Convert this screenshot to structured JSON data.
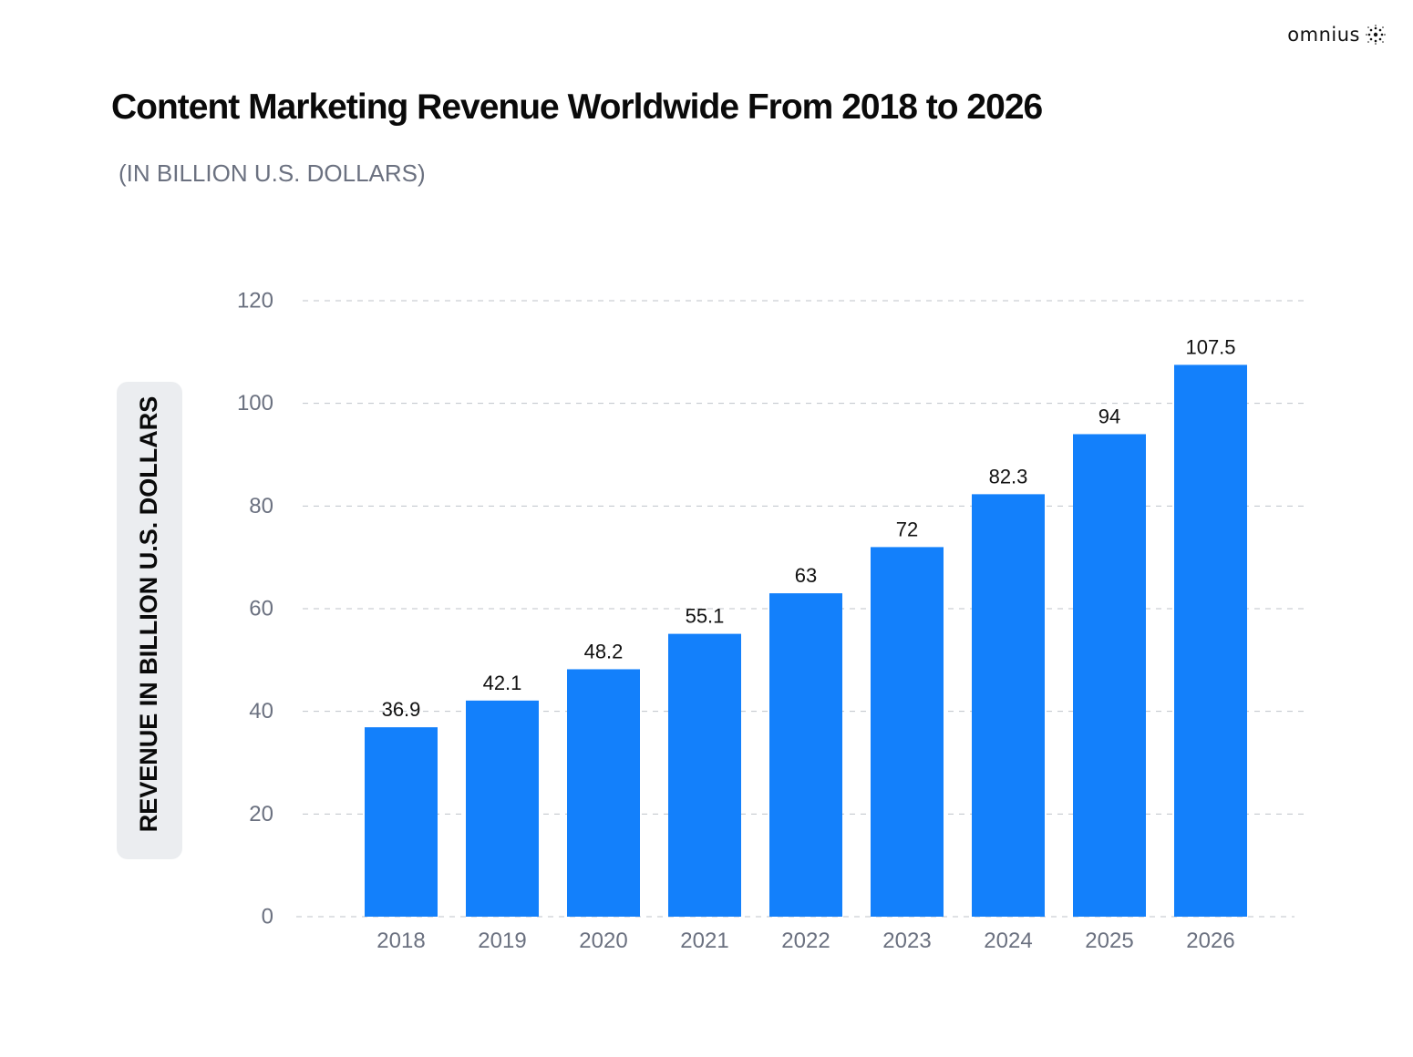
{
  "brand": {
    "name": "omnius",
    "icon": "omnius-logo-icon"
  },
  "header": {
    "title": "Content Marketing Revenue Worldwide From 2018 to 2026",
    "subtitle": "(IN BILLION U.S. DOLLARS)"
  },
  "colors": {
    "bar": "#1380FB",
    "grid": "#bfc3ca",
    "axis_text": "#6b7180",
    "label_text": "#111111",
    "ylabel_bg": "#ebedf0"
  },
  "chart_data": {
    "type": "bar",
    "title": "Content Marketing Revenue Worldwide From 2018 to 2026",
    "subtitle": "(IN BILLION U.S. DOLLARS)",
    "xlabel": "",
    "ylabel": "REVENUE IN BILLION U.S. DOLLARS",
    "categories": [
      "2018",
      "2019",
      "2020",
      "2021",
      "2022",
      "2023",
      "2024",
      "2025",
      "2026"
    ],
    "values": [
      36.9,
      42.1,
      48.2,
      55.1,
      63,
      72,
      82.3,
      94,
      107.5
    ],
    "value_labels": [
      "36.9",
      "42.1",
      "48.2",
      "55.1",
      "63",
      "72",
      "82.3",
      "94",
      "107.5"
    ],
    "ylim": [
      0,
      120
    ],
    "yticks": [
      0,
      20,
      40,
      60,
      80,
      100,
      120
    ],
    "grid": "horizontal-dashed",
    "legend": "none"
  }
}
